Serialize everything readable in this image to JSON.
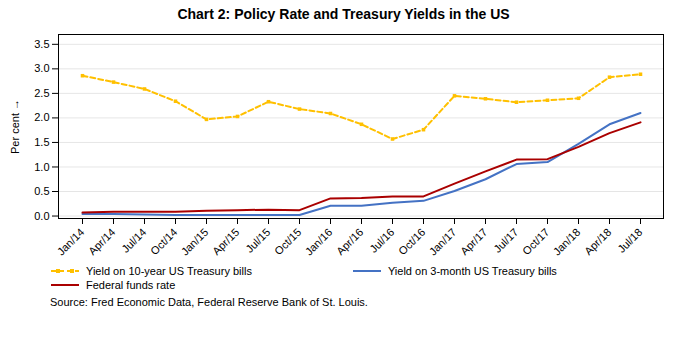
{
  "chart_data": {
    "type": "line",
    "title": "Chart 2: Policy Rate and Treasury Yields in the US",
    "ylabel": "Per cent",
    "source": "Source: Fred Economic Data, Federal Reserve Bank of St. Louis.",
    "categories": [
      "Jan/14",
      "Apr/14",
      "Jul/14",
      "Oct/14",
      "Jan/15",
      "Apr/15",
      "Jul/15",
      "Oct/15",
      "Jan/16",
      "Apr/16",
      "Jul/16",
      "Oct/16",
      "Jan/17",
      "Apr/17",
      "Jul/17",
      "Oct/17",
      "Jan/18",
      "Apr/18",
      "Jul/18"
    ],
    "series": [
      {
        "name": "Yield on 10-year US Treasury bills",
        "color": "#ffc000",
        "line_style": "dashed",
        "marker": "square",
        "values": [
          2.86,
          2.73,
          2.59,
          2.34,
          1.97,
          2.03,
          2.33,
          2.18,
          2.09,
          1.87,
          1.57,
          1.76,
          2.45,
          2.39,
          2.32,
          2.36,
          2.4,
          2.83,
          2.89
        ]
      },
      {
        "name": "Yield on 3-month US Treasury bills",
        "color": "#4472c4",
        "line_style": "solid",
        "values": [
          0.04,
          0.04,
          0.03,
          0.02,
          0.02,
          0.02,
          0.02,
          0.02,
          0.21,
          0.21,
          0.27,
          0.31,
          0.51,
          0.75,
          1.06,
          1.1,
          1.47,
          1.87,
          2.1
        ]
      },
      {
        "name": "Federal funds rate",
        "color": "#aa0000",
        "line_style": "solid",
        "values": [
          0.07,
          0.09,
          0.09,
          0.09,
          0.11,
          0.12,
          0.13,
          0.12,
          0.36,
          0.37,
          0.4,
          0.4,
          0.66,
          0.91,
          1.15,
          1.16,
          1.41,
          1.69,
          1.91
        ]
      }
    ],
    "ylim": [
      -0.05,
      3.7
    ],
    "yticks": [
      {
        "value": 0,
        "label": "0.0"
      },
      0.5,
      {
        "value": 1,
        "label": "1.0"
      },
      1.5,
      {
        "value": 2,
        "label": "2.0"
      },
      2.5,
      {
        "value": 3,
        "label": "3.0"
      },
      3.5
    ],
    "grid": true,
    "legend": "bottom"
  }
}
